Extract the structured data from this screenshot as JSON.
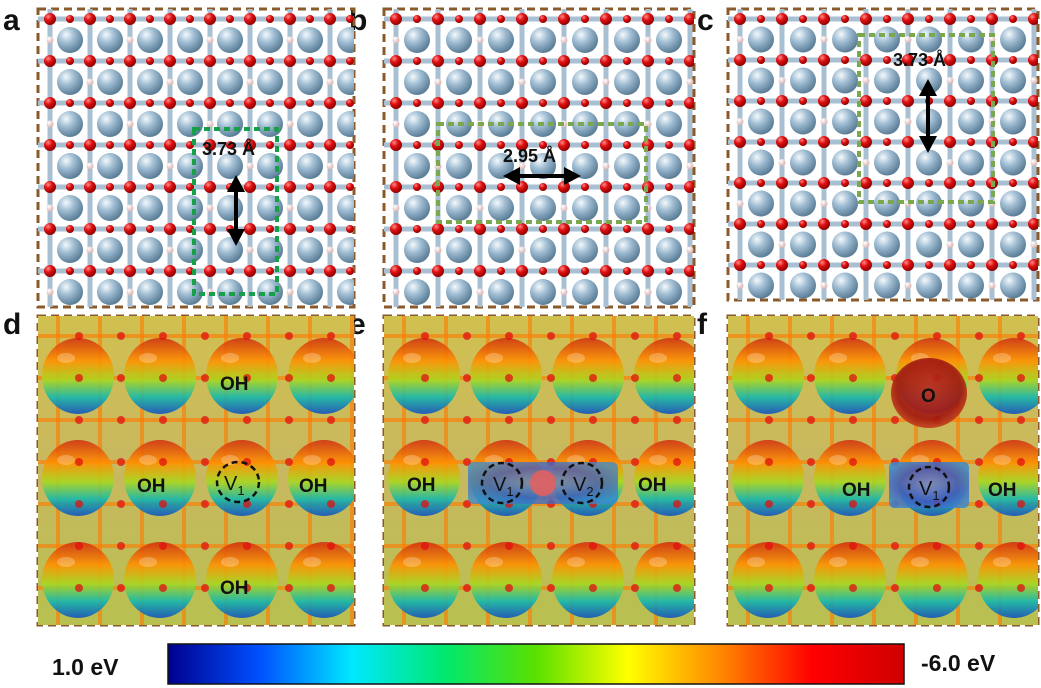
{
  "panels": [
    {
      "id": "a",
      "label": "a",
      "annotation": "3.73 Å"
    },
    {
      "id": "b",
      "label": "b",
      "annotation": "2.95 Å"
    },
    {
      "id": "c",
      "label": "c",
      "annotation": "3.73 Å"
    },
    {
      "id": "d",
      "label": "d",
      "species": [
        "OH",
        "OH",
        "OH",
        "OH"
      ],
      "vacancies": [
        {
          "text": "V",
          "sub": "1"
        }
      ]
    },
    {
      "id": "e",
      "label": "e",
      "species": [
        "OH",
        "OH"
      ],
      "vacancies": [
        {
          "text": "V",
          "sub": "1"
        },
        {
          "text": "V",
          "sub": "2"
        }
      ]
    },
    {
      "id": "f",
      "label": "f",
      "species": [
        "O",
        "OH",
        "OH"
      ],
      "vacancies": [
        {
          "text": "V",
          "sub": "1"
        }
      ]
    }
  ],
  "colorbar": {
    "left_label": "1.0 eV",
    "right_label": "-6.0 eV",
    "stops": [
      "#00008f",
      "#0050ff",
      "#00e8ff",
      "#00e870",
      "#5ae000",
      "#ffff00",
      "#ff8800",
      "#ff0000",
      "#d00000"
    ]
  },
  "colors": {
    "frame": "#8a5a2b",
    "oxygen": "#e01010",
    "metal": "#8fb0c8",
    "hydrogen": "#f2d6d6",
    "bond": "#a9c0d3",
    "box": "#7aa84e",
    "box_dark": "#18a048"
  }
}
